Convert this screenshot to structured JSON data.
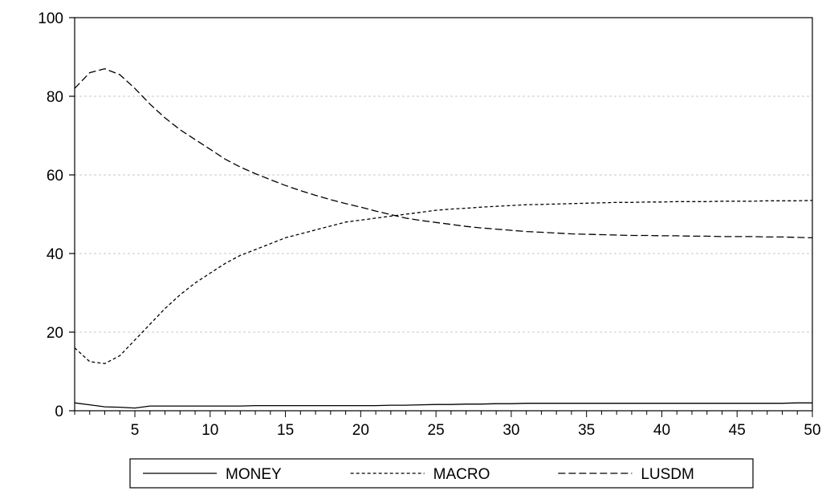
{
  "chart_data": {
    "type": "line",
    "title": "",
    "xlabel": "",
    "ylabel": "",
    "xlim": [
      1,
      50
    ],
    "ylim": [
      0,
      100
    ],
    "x_ticks": [
      5,
      10,
      15,
      20,
      25,
      30,
      35,
      40,
      45,
      50
    ],
    "y_ticks": [
      0,
      20,
      40,
      60,
      80,
      100
    ],
    "grid": "horizontal dashed",
    "legend_position": "bottom",
    "x": [
      1,
      2,
      3,
      4,
      5,
      6,
      7,
      8,
      9,
      10,
      11,
      12,
      13,
      14,
      15,
      16,
      17,
      18,
      19,
      20,
      21,
      22,
      23,
      24,
      25,
      26,
      27,
      28,
      29,
      30,
      31,
      32,
      33,
      34,
      35,
      36,
      37,
      38,
      39,
      40,
      41,
      42,
      43,
      44,
      45,
      46,
      47,
      48,
      49,
      50
    ],
    "series": [
      {
        "name": "MONEY",
        "dash": "solid",
        "color": "#000000",
        "values": [
          2.0,
          1.5,
          1.0,
          0.9,
          0.7,
          1.2,
          1.2,
          1.2,
          1.2,
          1.2,
          1.2,
          1.2,
          1.3,
          1.3,
          1.3,
          1.3,
          1.3,
          1.3,
          1.3,
          1.3,
          1.3,
          1.4,
          1.4,
          1.5,
          1.6,
          1.6,
          1.7,
          1.7,
          1.8,
          1.8,
          1.9,
          1.9,
          1.9,
          1.9,
          1.9,
          1.9,
          1.9,
          1.9,
          1.9,
          1.9,
          1.9,
          1.9,
          1.9,
          1.9,
          1.9,
          1.9,
          1.9,
          1.9,
          2.0,
          2.0
        ]
      },
      {
        "name": "MACRO",
        "dash": "short-dash",
        "color": "#000000",
        "values": [
          16.0,
          12.5,
          12.0,
          14.0,
          18.0,
          22.0,
          26.0,
          29.5,
          32.5,
          35.0,
          37.5,
          39.5,
          41.0,
          42.5,
          44.0,
          45.0,
          46.0,
          47.0,
          48.0,
          48.5,
          49.0,
          49.5,
          50.0,
          50.5,
          51.0,
          51.3,
          51.5,
          51.8,
          52.0,
          52.2,
          52.4,
          52.5,
          52.6,
          52.7,
          52.8,
          52.9,
          53.0,
          53.0,
          53.1,
          53.1,
          53.2,
          53.2,
          53.2,
          53.3,
          53.3,
          53.3,
          53.4,
          53.4,
          53.4,
          53.5
        ]
      },
      {
        "name": "LUSDM",
        "dash": "long-dash",
        "color": "#000000",
        "values": [
          82.0,
          86.0,
          87.0,
          85.5,
          82.0,
          78.0,
          74.5,
          71.5,
          69.0,
          66.5,
          64.0,
          62.0,
          60.3,
          58.8,
          57.3,
          56.0,
          54.8,
          53.7,
          52.7,
          51.8,
          50.8,
          49.9,
          49.0,
          48.4,
          47.9,
          47.4,
          46.9,
          46.5,
          46.2,
          45.9,
          45.6,
          45.4,
          45.2,
          45.0,
          44.9,
          44.8,
          44.7,
          44.6,
          44.6,
          44.5,
          44.5,
          44.4,
          44.4,
          44.3,
          44.3,
          44.3,
          44.2,
          44.2,
          44.1,
          44.0
        ]
      }
    ]
  }
}
